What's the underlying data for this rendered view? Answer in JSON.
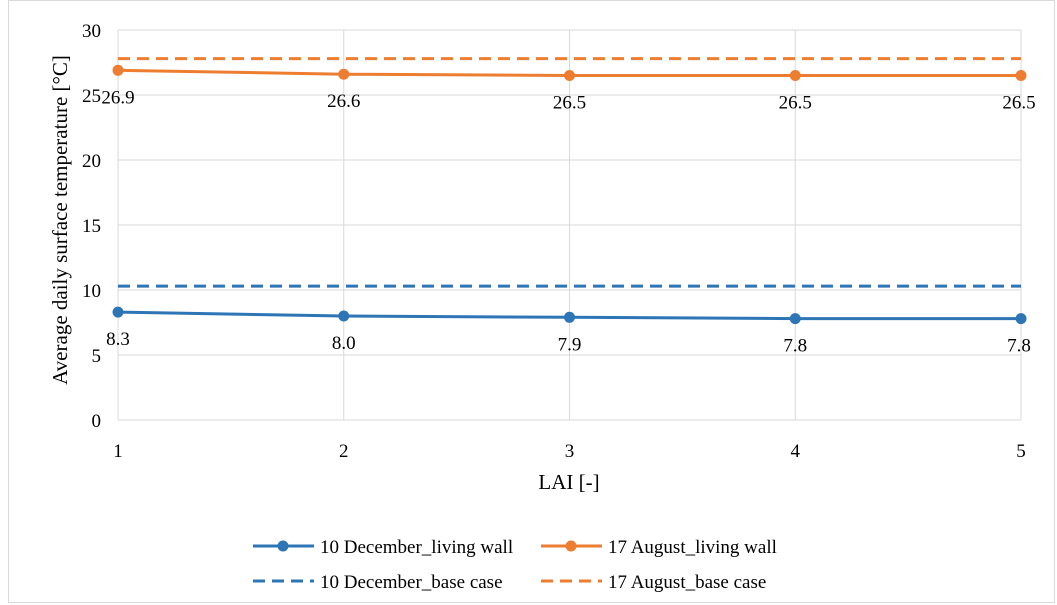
{
  "chart_data": {
    "type": "line",
    "title": "",
    "xlabel": "LAI [-]",
    "ylabel": "Average daily surface temperature [°C]",
    "x": [
      1,
      2,
      3,
      4,
      5
    ],
    "xlim": [
      1,
      5
    ],
    "ylim": [
      0,
      30
    ],
    "yticks": [
      0,
      5,
      10,
      15,
      20,
      25,
      30
    ],
    "grid": true,
    "legend_position": "bottom",
    "series": [
      {
        "name": "10 December_living wall",
        "values": [
          8.3,
          8.0,
          7.9,
          7.8,
          7.8
        ],
        "labels": [
          "8.3",
          "8.0",
          "7.9",
          "7.8",
          "7.8"
        ],
        "color": "#2e75b6",
        "style": "solid-marker"
      },
      {
        "name": "17 August_living wall",
        "values": [
          26.9,
          26.6,
          26.5,
          26.5,
          26.5
        ],
        "labels": [
          "26.9",
          "26.6",
          "26.5",
          "26.5",
          "26.5"
        ],
        "color": "#ed7d31",
        "style": "solid-marker"
      },
      {
        "name": "10 December_base case",
        "values": [
          10.3,
          10.3,
          10.3,
          10.3,
          10.3
        ],
        "color": "#2e75b6",
        "style": "dashed"
      },
      {
        "name": "17 August_base case",
        "values": [
          27.8,
          27.8,
          27.8,
          27.8,
          27.8
        ],
        "color": "#ed7d31",
        "style": "dashed"
      }
    ]
  }
}
